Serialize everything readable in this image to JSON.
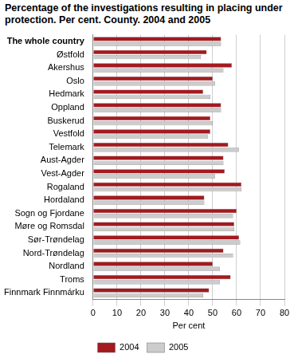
{
  "chart_data": {
    "type": "bar",
    "orientation": "horizontal",
    "title": "Percentage of the investigations resulting in placing under protection. Per cent. County. 2004 and 2005",
    "x_label": "Per cent",
    "categories": [
      "The whole country",
      "Østfold",
      "Akershus",
      "Oslo",
      "Hedmark",
      "Oppland",
      "Buskerud",
      "Vestfold",
      "Telemark",
      "Aust-Agder",
      "Vest-Agder",
      "Rogaland",
      "Hordaland",
      "Sogn og Fjordane",
      "Møre og Romsdal",
      "Sør-Trøndelag",
      "Nord-Trøndelag",
      "Nordland",
      "Troms",
      "Finnmark Finnmárku"
    ],
    "series": [
      {
        "name": "2004",
        "color": "#a31a1f",
        "values": [
          53.5,
          47.5,
          58,
          50,
          46,
          53.5,
          49,
          49,
          56.5,
          54.5,
          55,
          62,
          46.5,
          60,
          59,
          61,
          54.5,
          50,
          57.5,
          48.5
        ]
      },
      {
        "name": "2005",
        "color": "#cccccc",
        "values": [
          53.5,
          45,
          54.5,
          51,
          49,
          53.5,
          50,
          48,
          61,
          54.5,
          51,
          62,
          46.5,
          58.5,
          59,
          61.5,
          58.5,
          53,
          53,
          46
        ]
      }
    ],
    "xlim": [
      0,
      80
    ],
    "xticks": [
      0,
      10,
      20,
      30,
      40,
      50,
      60,
      70,
      80
    ],
    "grid": true,
    "legend": "bottom"
  }
}
